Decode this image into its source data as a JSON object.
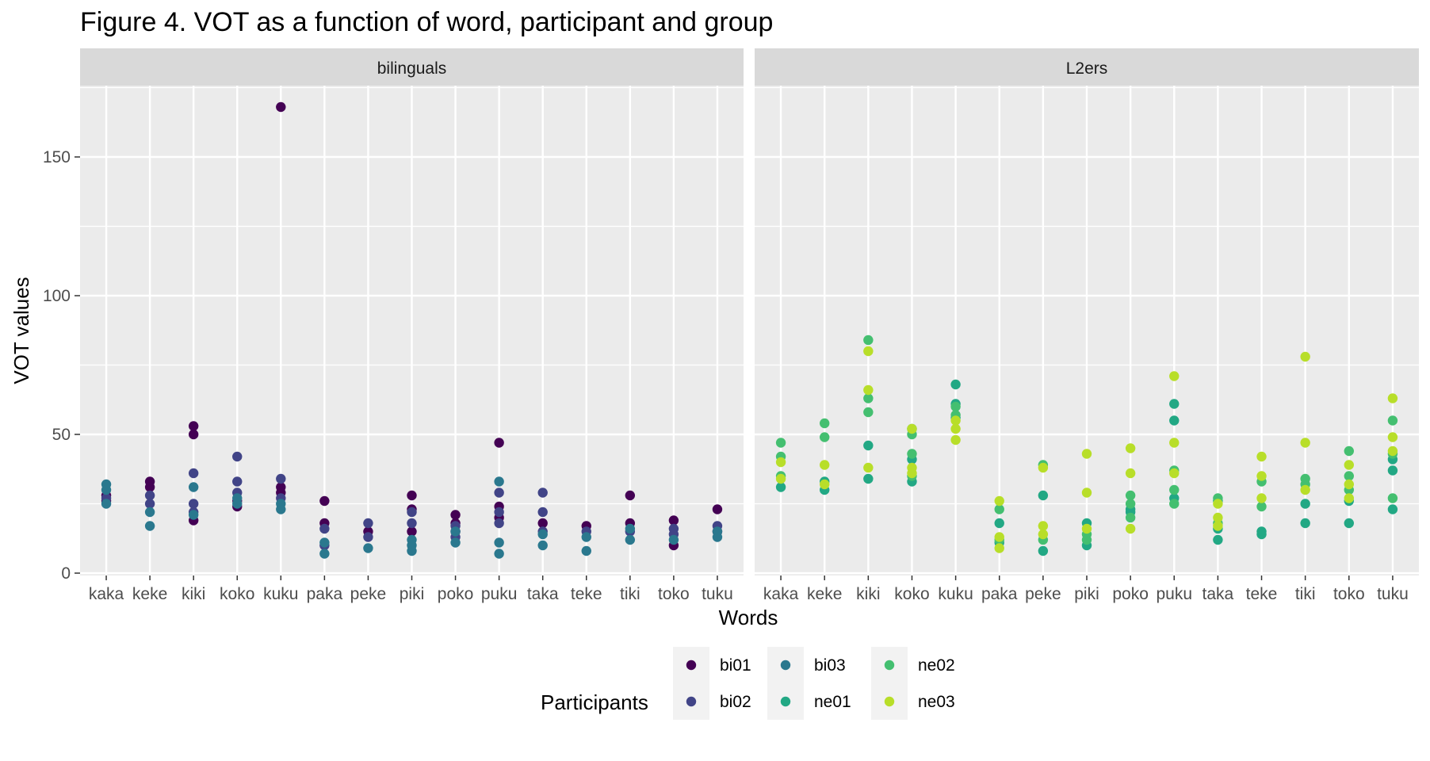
{
  "colors": {
    "panel_bg": "#EBEBEB",
    "strip_bg": "#D9D9D9",
    "grid": "#FFFFFF",
    "legend_key_bg": "#F2F2F2",
    "participants": {
      "bi01": "#440154",
      "bi02": "#414487",
      "bi03": "#2A788E",
      "ne01": "#22A884",
      "ne02": "#44BF70",
      "ne03": "#B8DE29"
    }
  },
  "chart_data": {
    "type": "scatter",
    "title": "Figure 4. VOT as a function of word, participant and group",
    "xlabel": "Words",
    "ylabel": "VOT values",
    "ylim": [
      0,
      175
    ],
    "yticks": [
      0,
      50,
      100,
      150
    ],
    "grid": true,
    "categories": [
      "kaka",
      "keke",
      "kiki",
      "koko",
      "kuku",
      "paka",
      "peke",
      "piki",
      "poko",
      "puku",
      "taka",
      "teke",
      "tiki",
      "toko",
      "tuku"
    ],
    "legend": {
      "title": "Participants",
      "position": "bottom",
      "entries": [
        "bi01",
        "bi02",
        "bi03",
        "ne01",
        "ne02",
        "ne03"
      ]
    },
    "panels": [
      {
        "label": "bilinguals",
        "series": [
          {
            "name": "bi01",
            "points": {
              "kaka": [
                28,
                26
              ],
              "keke": [
                33,
                31
              ],
              "kiki": [
                53,
                50,
                19
              ],
              "koko": [
                24,
                26
              ],
              "kuku": [
                168,
                29,
                31
              ],
              "paka": [
                26,
                18
              ],
              "peke": [
                15
              ],
              "piki": [
                28,
                23,
                15
              ],
              "poko": [
                21,
                18,
                15
              ],
              "puku": [
                47,
                24,
                20
              ],
              "taka": [
                18
              ],
              "teke": [
                17
              ],
              "tiki": [
                28,
                18
              ],
              "toko": [
                19,
                10
              ],
              "tuku": [
                23,
                15
              ]
            }
          },
          {
            "name": "bi02",
            "points": {
              "kaka": [
                27
              ],
              "keke": [
                28,
                25
              ],
              "kiki": [
                36,
                25,
                22
              ],
              "koko": [
                42,
                33,
                29
              ],
              "kuku": [
                34,
                27
              ],
              "paka": [
                16,
                10
              ],
              "peke": [
                18,
                13
              ],
              "piki": [
                22,
                18
              ],
              "poko": [
                17,
                13
              ],
              "puku": [
                29,
                22,
                18
              ],
              "taka": [
                29,
                22,
                15
              ],
              "teke": [
                15
              ],
              "tiki": [
                15
              ],
              "toko": [
                16,
                14
              ],
              "tuku": [
                17
              ]
            }
          },
          {
            "name": "bi03",
            "points": {
              "kaka": [
                32,
                30,
                25
              ],
              "keke": [
                22,
                17
              ],
              "kiki": [
                31,
                21
              ],
              "koko": [
                27,
                25
              ],
              "kuku": [
                25,
                23
              ],
              "paka": [
                11,
                7
              ],
              "peke": [
                9
              ],
              "piki": [
                12,
                10,
                8
              ],
              "poko": [
                15,
                11
              ],
              "puku": [
                33,
                11,
                7
              ],
              "taka": [
                14,
                10
              ],
              "teke": [
                13,
                8
              ],
              "tiki": [
                16,
                12
              ],
              "toko": [
                12
              ],
              "tuku": [
                15,
                13
              ]
            }
          }
        ]
      },
      {
        "label": "L2ers",
        "series": [
          {
            "name": "ne01",
            "points": {
              "kaka": [
                31
              ],
              "keke": [
                33,
                30
              ],
              "kiki": [
                46,
                34
              ],
              "koko": [
                52,
                41,
                33
              ],
              "kuku": [
                68,
                61,
                56
              ],
              "paka": [
                18,
                11
              ],
              "peke": [
                28,
                8
              ],
              "piki": [
                18,
                10
              ],
              "poko": [
                23,
                22
              ],
              "puku": [
                61,
                55,
                27
              ],
              "taka": [
                26,
                16,
                12
              ],
              "teke": [
                15,
                14
              ],
              "tiki": [
                25,
                18
              ],
              "toko": [
                26,
                18
              ],
              "tuku": [
                41,
                37,
                23
              ]
            }
          },
          {
            "name": "ne02",
            "points": {
              "kaka": [
                47,
                42,
                35
              ],
              "keke": [
                54,
                49
              ],
              "kiki": [
                84,
                63,
                58
              ],
              "koko": [
                50,
                43,
                35
              ],
              "kuku": [
                60,
                57
              ],
              "paka": [
                23,
                12
              ],
              "peke": [
                39,
                12
              ],
              "piki": [
                14,
                12
              ],
              "poko": [
                28,
                25,
                20
              ],
              "puku": [
                37,
                30,
                25
              ],
              "taka": [
                27,
                18
              ],
              "teke": [
                33,
                24
              ],
              "tiki": [
                34,
                32
              ],
              "toko": [
                44,
                35,
                30
              ],
              "tuku": [
                55,
                43,
                27
              ]
            }
          },
          {
            "name": "ne03",
            "points": {
              "kaka": [
                40,
                34
              ],
              "keke": [
                39,
                32
              ],
              "kiki": [
                80,
                66,
                38
              ],
              "koko": [
                52,
                38,
                36
              ],
              "kuku": [
                55,
                52,
                48
              ],
              "paka": [
                26,
                13,
                9
              ],
              "peke": [
                38,
                17,
                14
              ],
              "piki": [
                43,
                29,
                16
              ],
              "poko": [
                45,
                36,
                16
              ],
              "puku": [
                71,
                47,
                36
              ],
              "taka": [
                25,
                20,
                17
              ],
              "teke": [
                42,
                35,
                27
              ],
              "tiki": [
                78,
                47,
                30
              ],
              "toko": [
                39,
                32,
                27
              ],
              "tuku": [
                63,
                49,
                44
              ]
            }
          }
        ]
      }
    ]
  }
}
